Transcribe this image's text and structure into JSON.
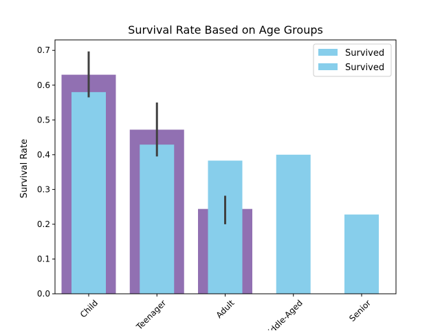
{
  "chart_data": {
    "type": "bar",
    "title": "Survival Rate Based on Age Groups",
    "xlabel": "",
    "ylabel": "Survival Rate",
    "ylim": [
      0,
      0.7
    ],
    "yticks": [
      0.0,
      0.1,
      0.2,
      0.3,
      0.4,
      0.5,
      0.6,
      0.7
    ],
    "ytick_labels": [
      "0.0",
      "0.1",
      "0.2",
      "0.3",
      "0.4",
      "0.5",
      "0.6",
      "0.7"
    ],
    "categories": [
      "Child",
      "Teenager",
      "Adult",
      "Middle-Aged",
      "Senior"
    ],
    "category_labels": [
      "Child",
      "Teenager",
      "Adult",
      "Middle-Aged",
      "Senior"
    ],
    "x_tick_rotation_deg": 45,
    "grid": false,
    "legend_position": "top-right",
    "series": [
      {
        "name": "",
        "color": "#9170b2",
        "style": "wide background bars with error bars",
        "values": [
          0.63,
          0.472,
          0.244,
          null,
          null
        ],
        "error_low": [
          0.565,
          0.395,
          0.2,
          null,
          null
        ],
        "error_high": [
          0.697,
          0.55,
          0.282,
          null,
          null
        ]
      },
      {
        "name": "Survived",
        "color": "#87ceeb",
        "style": "narrow foreground bars",
        "values": [
          0.58,
          0.429,
          0.383,
          0.4,
          0.228
        ]
      }
    ],
    "legend_entries": [
      "Survived",
      "Survived"
    ],
    "error_bar_color": "#404040"
  }
}
